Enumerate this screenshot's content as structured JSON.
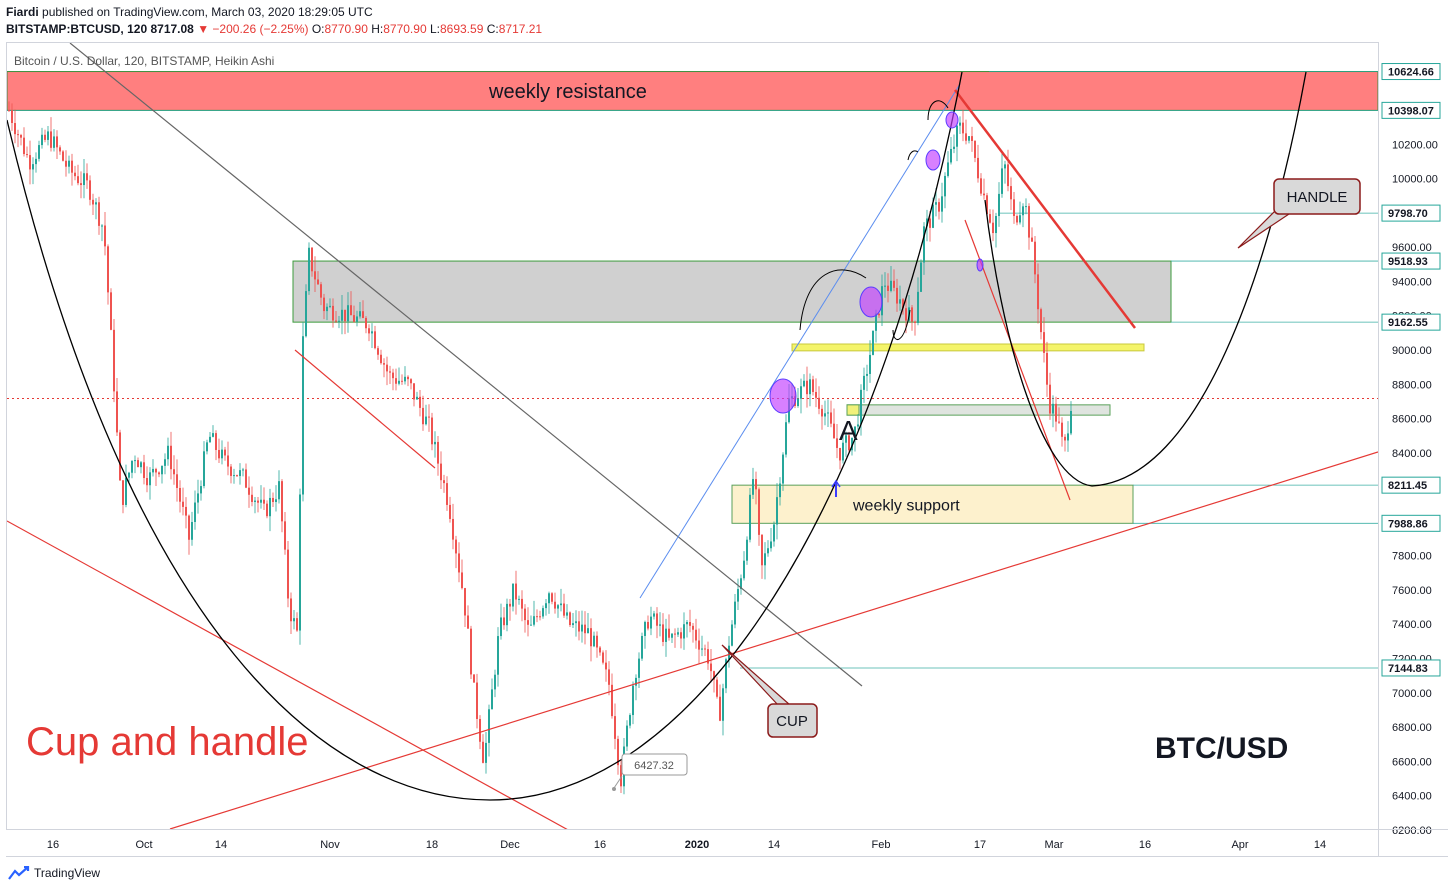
{
  "header": {
    "author": "Fiardi",
    "published": "published on TradingView.com, March 03, 2020 18:29:05 UTC",
    "symbol": "BITSTAMP:BTCUSD, 120",
    "last": "8717.08",
    "change": "▼ −200.26 (−2.25%)",
    "o_label": "O:",
    "o": "8770.90",
    "h_label": "H:",
    "h": "8770.90",
    "l_label": "L:",
    "l": "8693.59",
    "c_label": "C:",
    "c": "8717.21"
  },
  "footer": {
    "brand": "TradingView"
  },
  "colors": {
    "up": "#26a69a",
    "down": "#ef5350",
    "red_line": "#e53935",
    "resistance_zone": "#ff7f7f",
    "grey_zone": "#c8c8c8",
    "support_zone": "#fdf0c8",
    "yellow_line": "#f4f46a",
    "blue_line": "#5b8def"
  },
  "chart_data": {
    "type": "candlestick",
    "title": "Bitcoin / U.S. Dollar, 120, BITSTAMP, Heikin Ashi",
    "ylim": [
      6200,
      10700
    ],
    "y_ticks": [
      6200,
      6400,
      6600,
      6800,
      7000,
      7200,
      7400,
      7600,
      7800,
      8000,
      8200,
      8400,
      8600,
      8800,
      9000,
      9200,
      9400,
      9600,
      10000,
      10200
    ],
    "y_tick_labels": [
      "6200.00",
      "6400.00",
      "6600.00",
      "6800.00",
      "7000.00",
      "7200.00",
      "7400.00",
      "7600.00",
      "7800.00",
      "8000.00",
      "8200.00",
      "8400.00",
      "8600.00",
      "8800.00",
      "9000.00",
      "9200.00",
      "9400.00",
      "9600.00",
      "10000.00",
      "10200.00"
    ],
    "x_ticks": [
      "16",
      "Oct",
      "14",
      "Nov",
      "18",
      "Dec",
      "16",
      "2020",
      "14",
      "Feb",
      "17",
      "Mar",
      "16",
      "Apr",
      "14"
    ],
    "price_levels": [
      {
        "value": 10624.66,
        "label": "10624.66"
      },
      {
        "value": 10398.07,
        "label": "10398.07"
      },
      {
        "value": 9798.7,
        "label": "9798.70"
      },
      {
        "value": 9518.93,
        "label": "9518.93"
      },
      {
        "value": 9162.55,
        "label": "9162.55"
      },
      {
        "value": 8211.45,
        "label": "8211.45"
      },
      {
        "value": 7988.86,
        "label": "7988.86"
      },
      {
        "value": 7144.83,
        "label": "7144.83"
      }
    ],
    "current_price": 8717.08,
    "price_path": [
      [
        0,
        10400
      ],
      [
        20,
        10100
      ],
      [
        40,
        10250
      ],
      [
        60,
        10050
      ],
      [
        80,
        9950
      ],
      [
        95,
        9700
      ],
      [
        105,
        8800
      ],
      [
        112,
        8100
      ],
      [
        125,
        8400
      ],
      [
        140,
        8250
      ],
      [
        160,
        8400
      ],
      [
        180,
        7900
      ],
      [
        200,
        8500
      ],
      [
        215,
        8350
      ],
      [
        235,
        8250
      ],
      [
        255,
        8050
      ],
      [
        270,
        8200
      ],
      [
        280,
        7500
      ],
      [
        288,
        7350
      ],
      [
        294,
        9050
      ],
      [
        300,
        9550
      ],
      [
        315,
        9250
      ],
      [
        340,
        9200
      ],
      [
        360,
        9150
      ],
      [
        380,
        8850
      ],
      [
        400,
        8800
      ],
      [
        420,
        8550
      ],
      [
        440,
        8100
      ],
      [
        455,
        7550
      ],
      [
        465,
        7000
      ],
      [
        475,
        6600
      ],
      [
        490,
        7350
      ],
      [
        505,
        7600
      ],
      [
        520,
        7350
      ],
      [
        540,
        7600
      ],
      [
        560,
        7400
      ],
      [
        580,
        7350
      ],
      [
        600,
        7050
      ],
      [
        612,
        6500
      ],
      [
        625,
        7100
      ],
      [
        640,
        7450
      ],
      [
        660,
        7300
      ],
      [
        680,
        7400
      ],
      [
        700,
        7200
      ],
      [
        710,
        6850
      ],
      [
        720,
        7300
      ],
      [
        735,
        7800
      ],
      [
        745,
        8300
      ],
      [
        752,
        7700
      ],
      [
        765,
        8000
      ],
      [
        780,
        8700
      ],
      [
        800,
        8800
      ],
      [
        815,
        8650
      ],
      [
        830,
        8400
      ],
      [
        845,
        8500
      ],
      [
        860,
        8950
      ],
      [
        875,
        9400
      ],
      [
        890,
        9300
      ],
      [
        905,
        9150
      ],
      [
        915,
        9700
      ],
      [
        930,
        9850
      ],
      [
        940,
        10100
      ],
      [
        950,
        10300
      ],
      [
        960,
        10250
      ],
      [
        975,
        9900
      ],
      [
        985,
        9700
      ],
      [
        995,
        10100
      ],
      [
        1005,
        9750
      ],
      [
        1015,
        9900
      ],
      [
        1025,
        9500
      ],
      [
        1033,
        9050
      ],
      [
        1040,
        8700
      ],
      [
        1048,
        8600
      ],
      [
        1055,
        8400
      ],
      [
        1062,
        8700
      ],
      [
        1070,
        8717
      ]
    ],
    "zones": [
      {
        "name": "weekly resistance",
        "label": "weekly resistance",
        "from": 10398.07,
        "to": 10624.66
      },
      {
        "name": "grey resistance",
        "label": "",
        "from": 9162.55,
        "to": 9518.93
      },
      {
        "name": "weekly support",
        "label": "weekly support",
        "from": 7988.86,
        "to": 8211.45
      }
    ],
    "annotations": {
      "cup_and_handle": "Cup and handle",
      "pair": "BTC/USD",
      "cup": "CUP",
      "handle": "HANDLE",
      "point_a": "A",
      "low_label": "6427.32"
    }
  }
}
